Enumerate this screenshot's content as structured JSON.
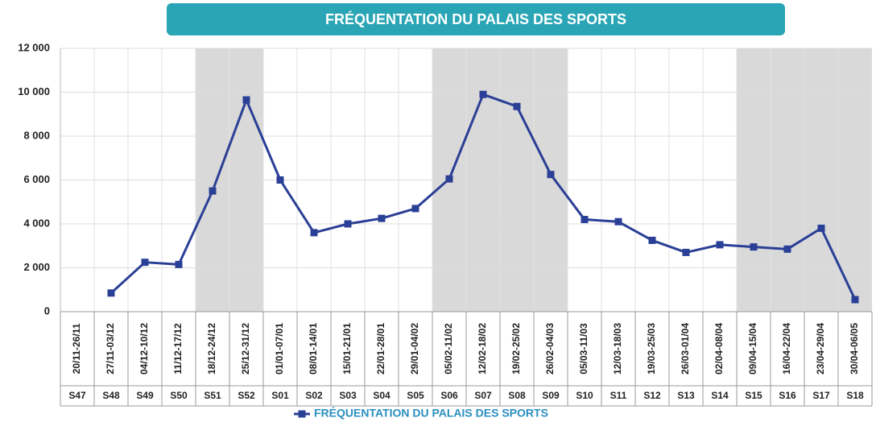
{
  "chart_data": {
    "type": "line",
    "title": "FRÉQUENTATION DU PALAIS DES SPORTS",
    "categories": [
      "S47",
      "S48",
      "S49",
      "S50",
      "S51",
      "S52",
      "S01",
      "S02",
      "S03",
      "S04",
      "S05",
      "S06",
      "S07",
      "S08",
      "S09",
      "S10",
      "S11",
      "S12",
      "S13",
      "S14",
      "S15",
      "S16",
      "S17",
      "S18"
    ],
    "date_labels": [
      "20/11-26/11",
      "27/11-03/12",
      "04/12-10/12",
      "11/12-17/12",
      "18/12-24/12",
      "25/12-31/12",
      "01/01-07/01",
      "08/01-14/01",
      "15/01-21/01",
      "22/01-28/01",
      "29/01-04/02",
      "05/02-11/02",
      "12/02-18/02",
      "19/02-25/02",
      "26/02-04/03",
      "05/03-11/03",
      "12/03-18/03",
      "19/03-25/03",
      "26/03-01/04",
      "02/04-08/04",
      "09/04-15/04",
      "16/04-22/04",
      "23/04-29/04",
      "30/04-06/05"
    ],
    "series": [
      {
        "name": "FRÉQUENTATION DU PALAIS DES SPORTS",
        "color": "#2a3f96",
        "values": [
          null,
          850,
          2250,
          2150,
          5500,
          9650,
          6000,
          3600,
          4000,
          4250,
          4700,
          6050,
          9900,
          9350,
          6250,
          4200,
          4100,
          3250,
          2700,
          3050,
          2950,
          2850,
          3800,
          550
        ]
      }
    ],
    "shaded": [
      [
        "S51",
        "S52"
      ],
      [
        "S06",
        "S09"
      ],
      [
        "S15",
        "S18"
      ]
    ],
    "ylim": [
      0,
      12000
    ],
    "yticks": [
      0,
      {
        "value": 2000,
        "label": "2 000"
      },
      {
        "value": 4000,
        "label": "4 000"
      },
      {
        "value": 6000,
        "label": "6 000"
      },
      {
        "value": 8000,
        "label": "8 000"
      },
      {
        "value": 10000,
        "label": "10 000"
      },
      {
        "value": 12000,
        "label": "12 000"
      }
    ],
    "grid": true,
    "legend": "bottom"
  }
}
